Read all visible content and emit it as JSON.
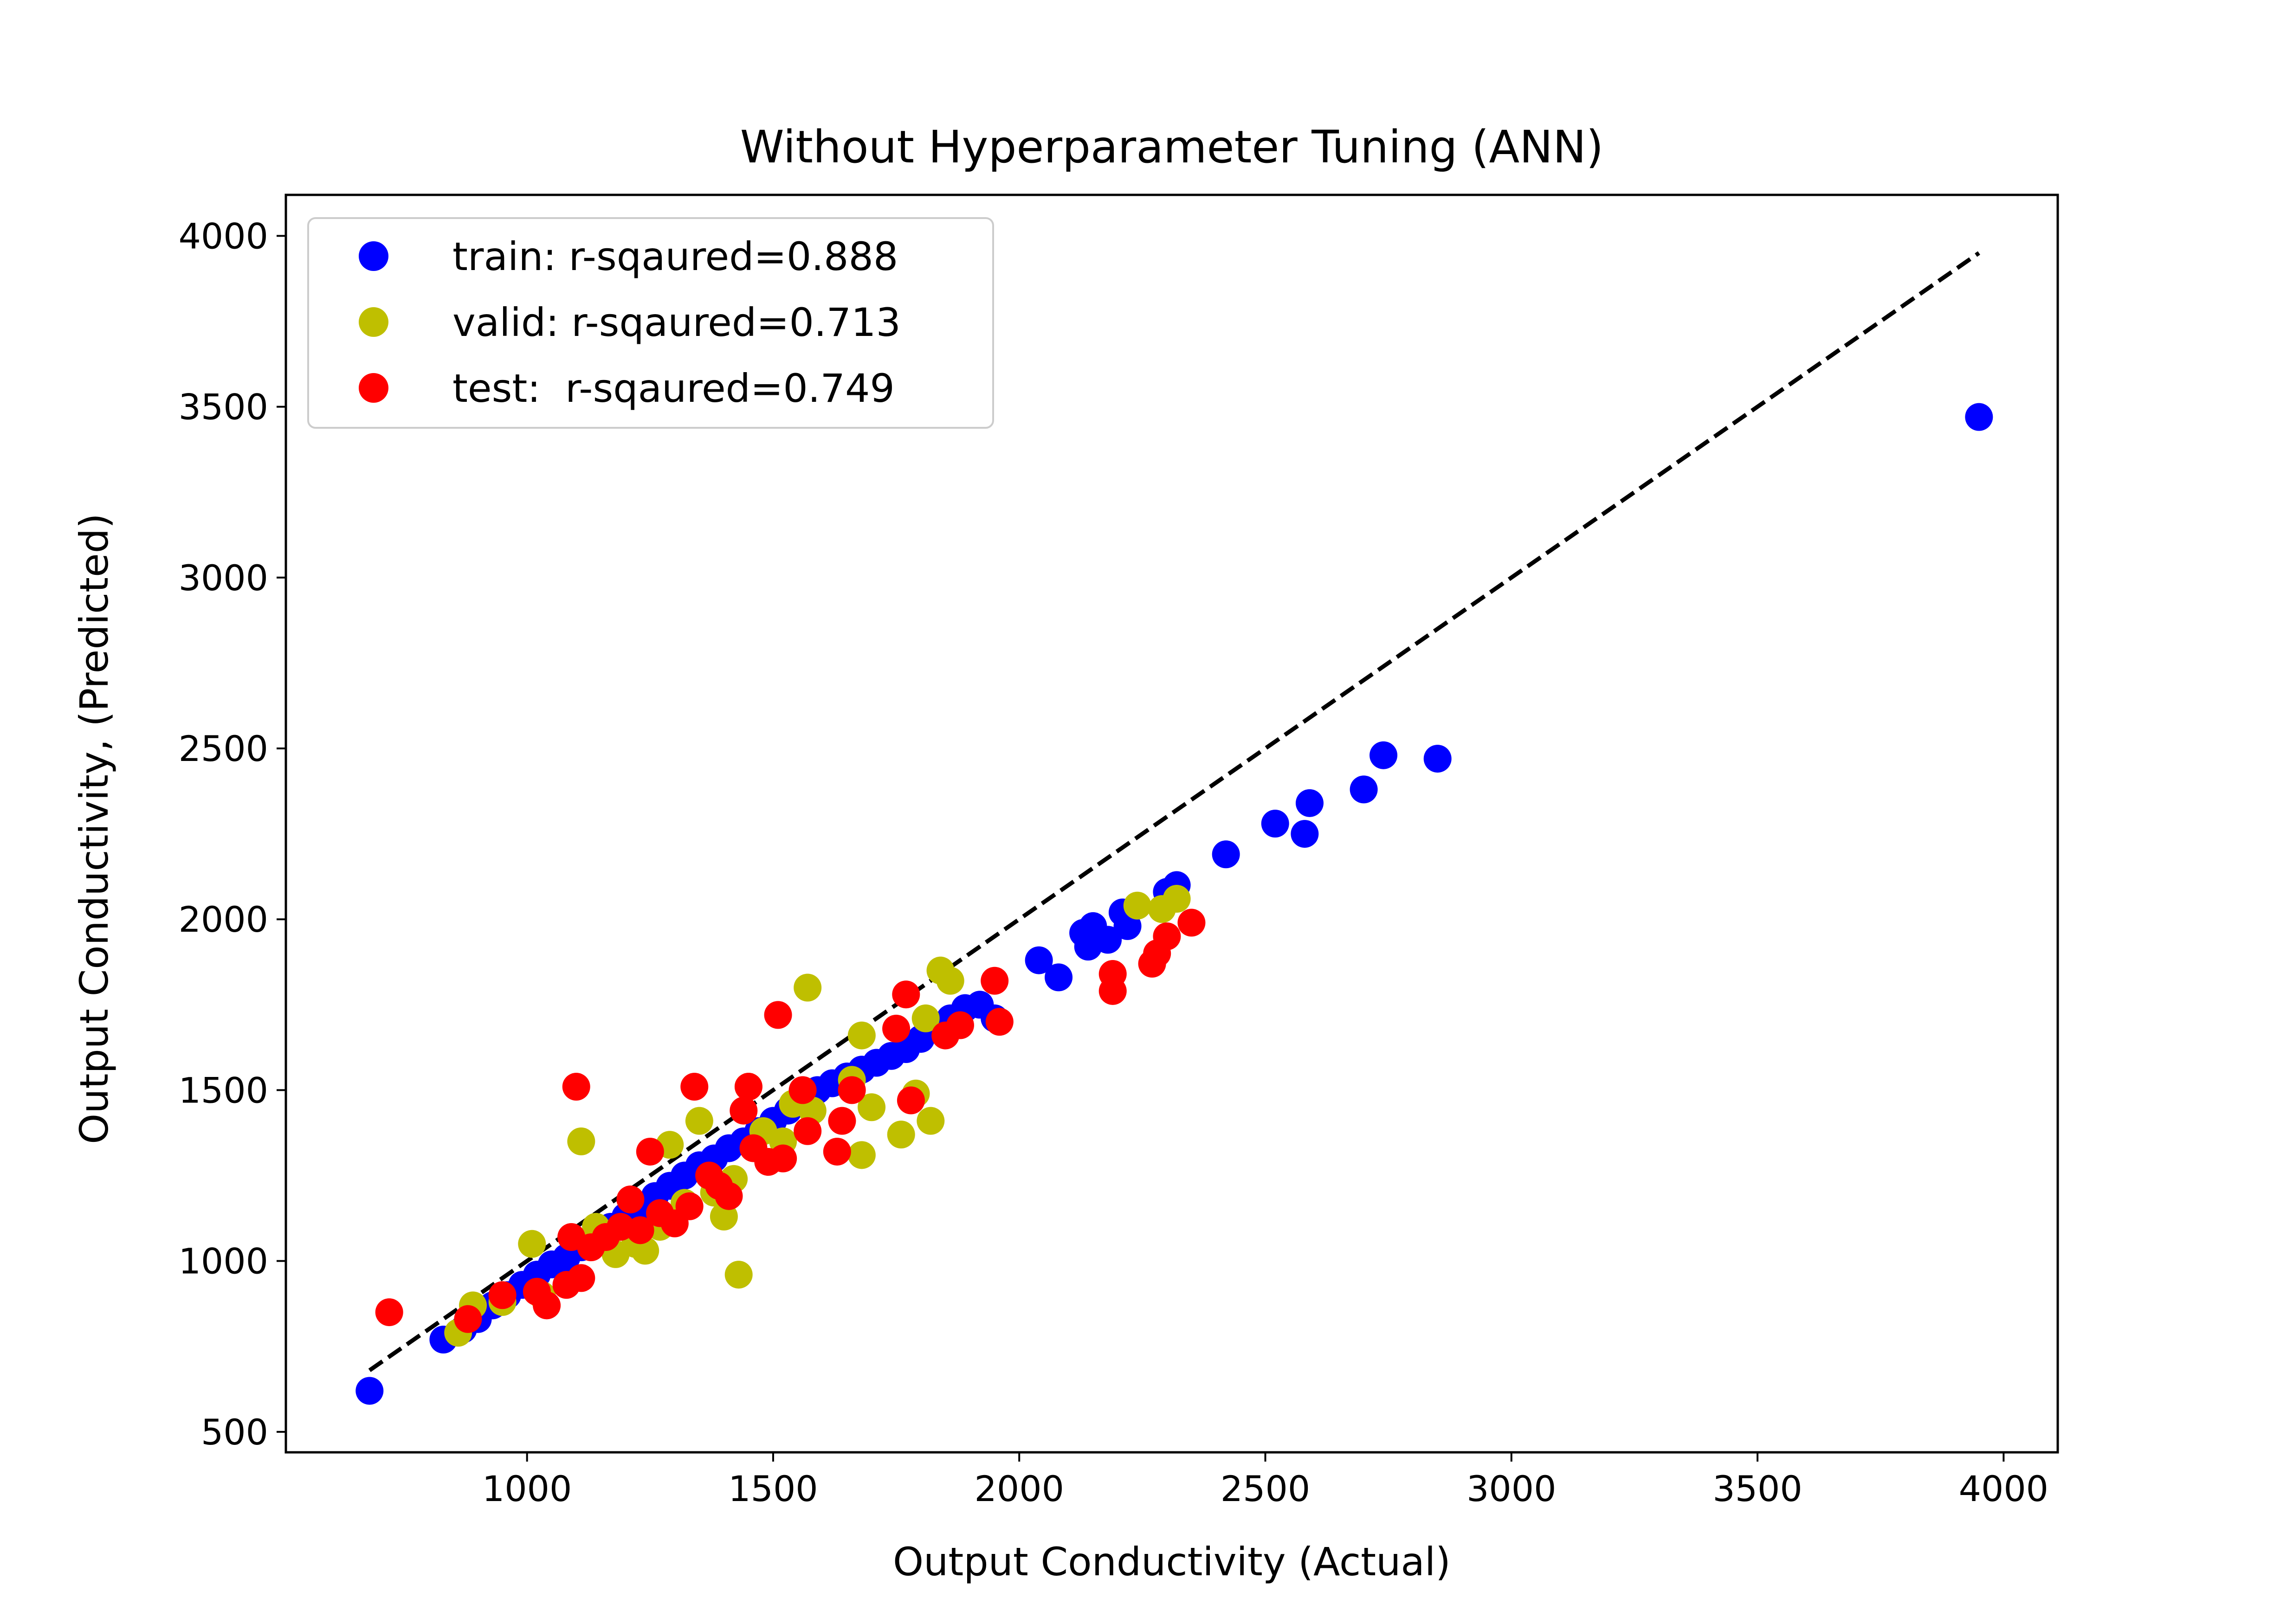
{
  "chart_data": {
    "type": "scatter",
    "title": "Without Hyperparameter Tuning (ANN)",
    "xlabel": "Output Conductivity (Actual)",
    "ylabel": "Output Conductivity, (Predicted)",
    "xlim": [
      510,
      4110
    ],
    "ylim": [
      440,
      4120
    ],
    "xticks": [
      1000,
      1500,
      2000,
      2500,
      3000,
      3500,
      4000
    ],
    "yticks": [
      500,
      1000,
      1500,
      2000,
      2500,
      3000,
      3500,
      4000
    ],
    "xtick_labels": [
      "1000",
      "1500",
      "2000",
      "2500",
      "3000",
      "3500",
      "4000"
    ],
    "ytick_labels": [
      "500",
      "1000",
      "1500",
      "2000",
      "2500",
      "3000",
      "3500",
      "4000"
    ],
    "grid": false,
    "legend_position": "upper-left",
    "reference_line": {
      "style": "dashed",
      "color": "#000000",
      "from": [
        680,
        680
      ],
      "to": [
        3950,
        3950
      ]
    },
    "series": [
      {
        "name": "train: r-sqaured=0.888",
        "color": "#0000ff",
        "points": [
          [
            680,
            620
          ],
          [
            830,
            770
          ],
          [
            870,
            800
          ],
          [
            900,
            830
          ],
          [
            930,
            870
          ],
          [
            960,
            900
          ],
          [
            990,
            930
          ],
          [
            1020,
            960
          ],
          [
            1050,
            990
          ],
          [
            1080,
            1010
          ],
          [
            1110,
            1040
          ],
          [
            1140,
            1070
          ],
          [
            1170,
            1100
          ],
          [
            1200,
            1130
          ],
          [
            1230,
            1160
          ],
          [
            1260,
            1190
          ],
          [
            1290,
            1220
          ],
          [
            1320,
            1250
          ],
          [
            1350,
            1280
          ],
          [
            1380,
            1300
          ],
          [
            1410,
            1330
          ],
          [
            1440,
            1350
          ],
          [
            1470,
            1380
          ],
          [
            1500,
            1410
          ],
          [
            1530,
            1440
          ],
          [
            1560,
            1470
          ],
          [
            1590,
            1500
          ],
          [
            1620,
            1520
          ],
          [
            1650,
            1540
          ],
          [
            1680,
            1560
          ],
          [
            1710,
            1580
          ],
          [
            1740,
            1600
          ],
          [
            1770,
            1620
          ],
          [
            1800,
            1650
          ],
          [
            1830,
            1680
          ],
          [
            1860,
            1710
          ],
          [
            1890,
            1740
          ],
          [
            1920,
            1750
          ],
          [
            1950,
            1710
          ],
          [
            2040,
            1880
          ],
          [
            2080,
            1830
          ],
          [
            2130,
            1960
          ],
          [
            2150,
            1980
          ],
          [
            2140,
            1920
          ],
          [
            2180,
            1940
          ],
          [
            2210,
            2020
          ],
          [
            2220,
            1980
          ],
          [
            2300,
            2080
          ],
          [
            2320,
            2100
          ],
          [
            2420,
            2190
          ],
          [
            2520,
            2280
          ],
          [
            2580,
            2250
          ],
          [
            2590,
            2340
          ],
          [
            2700,
            2380
          ],
          [
            2740,
            2480
          ],
          [
            2850,
            2470
          ],
          [
            3950,
            3470
          ]
        ]
      },
      {
        "name": "valid: r-sqaured=0.713",
        "color": "#bfbf00",
        "points": [
          [
            860,
            790
          ],
          [
            890,
            870
          ],
          [
            950,
            880
          ],
          [
            1010,
            1050
          ],
          [
            1030,
            900
          ],
          [
            1110,
            1350
          ],
          [
            1140,
            1100
          ],
          [
            1180,
            1020
          ],
          [
            1220,
            1050
          ],
          [
            1240,
            1030
          ],
          [
            1270,
            1100
          ],
          [
            1290,
            1340
          ],
          [
            1320,
            1170
          ],
          [
            1350,
            1410
          ],
          [
            1380,
            1200
          ],
          [
            1400,
            1130
          ],
          [
            1420,
            1240
          ],
          [
            1430,
            960
          ],
          [
            1450,
            1510
          ],
          [
            1480,
            1380
          ],
          [
            1520,
            1350
          ],
          [
            1540,
            1460
          ],
          [
            1570,
            1800
          ],
          [
            1580,
            1440
          ],
          [
            1660,
            1530
          ],
          [
            1680,
            1660
          ],
          [
            1680,
            1310
          ],
          [
            1700,
            1450
          ],
          [
            1760,
            1370
          ],
          [
            1790,
            1490
          ],
          [
            1810,
            1710
          ],
          [
            1820,
            1410
          ],
          [
            1840,
            1850
          ],
          [
            1860,
            1820
          ],
          [
            2240,
            2040
          ],
          [
            2290,
            2030
          ],
          [
            2320,
            2060
          ]
        ]
      },
      {
        "name": "test:  r-sqaured=0.749",
        "color": "#ff0000",
        "points": [
          [
            720,
            850
          ],
          [
            880,
            830
          ],
          [
            950,
            900
          ],
          [
            1020,
            910
          ],
          [
            1040,
            870
          ],
          [
            1080,
            930
          ],
          [
            1090,
            1070
          ],
          [
            1100,
            1510
          ],
          [
            1110,
            950
          ],
          [
            1130,
            1040
          ],
          [
            1160,
            1070
          ],
          [
            1190,
            1100
          ],
          [
            1210,
            1180
          ],
          [
            1230,
            1090
          ],
          [
            1250,
            1320
          ],
          [
            1270,
            1140
          ],
          [
            1300,
            1110
          ],
          [
            1330,
            1160
          ],
          [
            1340,
            1510
          ],
          [
            1370,
            1250
          ],
          [
            1390,
            1220
          ],
          [
            1410,
            1190
          ],
          [
            1440,
            1440
          ],
          [
            1450,
            1510
          ],
          [
            1460,
            1330
          ],
          [
            1490,
            1290
          ],
          [
            1510,
            1720
          ],
          [
            1520,
            1300
          ],
          [
            1560,
            1500
          ],
          [
            1570,
            1380
          ],
          [
            1630,
            1320
          ],
          [
            1640,
            1410
          ],
          [
            1660,
            1500
          ],
          [
            1750,
            1680
          ],
          [
            1770,
            1780
          ],
          [
            1780,
            1470
          ],
          [
            1850,
            1660
          ],
          [
            1880,
            1690
          ],
          [
            1950,
            1820
          ],
          [
            1960,
            1700
          ],
          [
            2190,
            1790
          ],
          [
            2190,
            1840
          ],
          [
            2270,
            1870
          ],
          [
            2280,
            1900
          ],
          [
            2300,
            1950
          ],
          [
            2350,
            1990
          ]
        ]
      }
    ]
  }
}
